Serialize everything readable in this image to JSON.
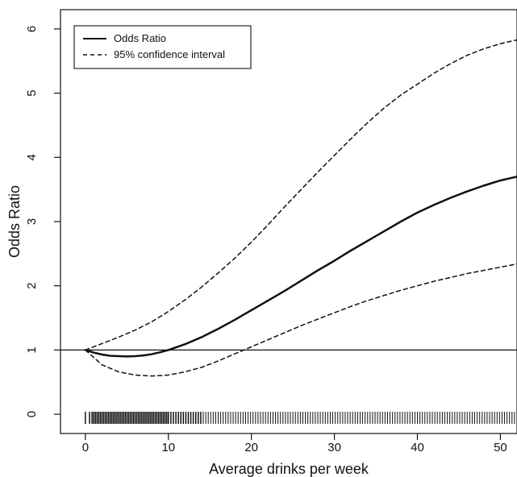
{
  "chart_data": {
    "type": "line",
    "xlabel": "Average drinks per week",
    "ylabel": "Odds Ratio",
    "xlim": [
      -3,
      52
    ],
    "ylim": [
      -0.3,
      6.3
    ],
    "x_ticks": [
      0,
      10,
      20,
      30,
      40,
      50
    ],
    "y_ticks": [
      0,
      1,
      2,
      3,
      4,
      5,
      6
    ],
    "reference_line_y": 1,
    "legend": {
      "position": "top-left",
      "entries": [
        {
          "label": "Odds Ratio",
          "line_style": "solid"
        },
        {
          "label": "95% confidence interval",
          "line_style": "dashed"
        }
      ]
    },
    "series": [
      {
        "name": "Odds Ratio",
        "style": "solid",
        "color": "#111111",
        "points": [
          [
            0,
            1.0
          ],
          [
            1,
            0.96
          ],
          [
            2,
            0.93
          ],
          [
            3,
            0.91
          ],
          [
            4,
            0.905
          ],
          [
            5,
            0.9
          ],
          [
            6,
            0.905
          ],
          [
            7,
            0.915
          ],
          [
            8,
            0.935
          ],
          [
            9,
            0.965
          ],
          [
            10,
            1.0
          ],
          [
            12,
            1.09
          ],
          [
            14,
            1.2
          ],
          [
            16,
            1.33
          ],
          [
            18,
            1.47
          ],
          [
            20,
            1.62
          ],
          [
            22,
            1.77
          ],
          [
            24,
            1.92
          ],
          [
            26,
            2.08
          ],
          [
            28,
            2.24
          ],
          [
            30,
            2.39
          ],
          [
            32,
            2.55
          ],
          [
            34,
            2.7
          ],
          [
            36,
            2.85
          ],
          [
            38,
            3.0
          ],
          [
            40,
            3.14
          ],
          [
            42,
            3.26
          ],
          [
            44,
            3.37
          ],
          [
            46,
            3.47
          ],
          [
            48,
            3.56
          ],
          [
            50,
            3.64
          ],
          [
            52,
            3.7
          ]
        ]
      },
      {
        "name": "95% confidence interval",
        "style": "dashed",
        "color": "#111111",
        "points": [
          [
            0,
            1.0
          ],
          [
            2,
            1.1
          ],
          [
            4,
            1.2
          ],
          [
            6,
            1.31
          ],
          [
            8,
            1.44
          ],
          [
            10,
            1.6
          ],
          [
            12,
            1.78
          ],
          [
            14,
            1.98
          ],
          [
            16,
            2.2
          ],
          [
            18,
            2.43
          ],
          [
            20,
            2.68
          ],
          [
            22,
            2.95
          ],
          [
            24,
            3.23
          ],
          [
            26,
            3.5
          ],
          [
            28,
            3.77
          ],
          [
            30,
            4.03
          ],
          [
            32,
            4.29
          ],
          [
            34,
            4.54
          ],
          [
            36,
            4.77
          ],
          [
            38,
            4.97
          ],
          [
            40,
            5.14
          ],
          [
            42,
            5.31
          ],
          [
            44,
            5.46
          ],
          [
            46,
            5.59
          ],
          [
            48,
            5.69
          ],
          [
            50,
            5.77
          ],
          [
            52,
            5.83
          ]
        ]
      },
      {
        "style": "dashed",
        "color": "#111111",
        "points": [
          [
            0,
            1.0
          ],
          [
            2,
            0.77
          ],
          [
            4,
            0.66
          ],
          [
            6,
            0.61
          ],
          [
            8,
            0.595
          ],
          [
            10,
            0.61
          ],
          [
            12,
            0.66
          ],
          [
            14,
            0.73
          ],
          [
            16,
            0.83
          ],
          [
            18,
            0.94
          ],
          [
            20,
            1.05
          ],
          [
            22,
            1.16
          ],
          [
            24,
            1.27
          ],
          [
            26,
            1.38
          ],
          [
            28,
            1.48
          ],
          [
            30,
            1.58
          ],
          [
            32,
            1.68
          ],
          [
            34,
            1.77
          ],
          [
            36,
            1.85
          ],
          [
            38,
            1.93
          ],
          [
            40,
            2.0
          ],
          [
            42,
            2.07
          ],
          [
            44,
            2.13
          ],
          [
            46,
            2.19
          ],
          [
            48,
            2.24
          ],
          [
            50,
            2.29
          ],
          [
            52,
            2.34
          ]
        ]
      }
    ],
    "rug": {
      "description_values": [
        0,
        0.5,
        0.8,
        1,
        1.2,
        1.4,
        1.6,
        1.8,
        2,
        2.2,
        2.4,
        2.6,
        2.8,
        3,
        3.2,
        3.4,
        3.6,
        3.8,
        4,
        4.2,
        4.4,
        4.6,
        4.8,
        5,
        5.2,
        5.4,
        5.6,
        5.8,
        6,
        6.2,
        6.4,
        6.6,
        6.8,
        7,
        7.2,
        7.4,
        7.6,
        7.8,
        8,
        8.2,
        8.4,
        8.6,
        8.8,
        9,
        9.2,
        9.4,
        9.6,
        9.8,
        10,
        10.3,
        10.6,
        10.9,
        11.2,
        11.5,
        11.8,
        12.1,
        12.4,
        12.7,
        13,
        13.3,
        13.6,
        13.9,
        14.2,
        14.5,
        14.8,
        15.1,
        15.4,
        15.7,
        16,
        16.3,
        16.6,
        16.9,
        17.2,
        17.5,
        17.8,
        18.1,
        18.4,
        18.7,
        19,
        19.3,
        19.6,
        19.9,
        20.2,
        20.5,
        20.8,
        21.1,
        21.4,
        21.7,
        22,
        22.3,
        22.6,
        22.9,
        23.2,
        23.5,
        23.8,
        24.1,
        24.4,
        24.7,
        25,
        25.3,
        25.6,
        25.9,
        26.2,
        26.5,
        26.8,
        27.1,
        27.4,
        27.7,
        28,
        28.3,
        28.6,
        28.9,
        29.2,
        29.5,
        29.8,
        30.1,
        30.4,
        30.7,
        31,
        31.3,
        31.6,
        31.9,
        32.2,
        32.5,
        32.8,
        33.1,
        33.4,
        33.7,
        34,
        34.3,
        34.6,
        34.9,
        35.2,
        35.5,
        35.8,
        36.1,
        36.4,
        36.7,
        37,
        37.3,
        37.6,
        37.9,
        38.2,
        38.5,
        38.8,
        39.1,
        39.4,
        39.7,
        40,
        40.3,
        40.6,
        40.9,
        41.2,
        41.5,
        41.8,
        42.1,
        42.4,
        42.7,
        43,
        43.3,
        43.6,
        43.9,
        44.2,
        44.5,
        44.8,
        45.1,
        45.4,
        45.7,
        46,
        46.3,
        46.6,
        46.9,
        47.2,
        47.5,
        47.8,
        48.1,
        48.4,
        48.7,
        49,
        49.3,
        49.6,
        49.9,
        50.2,
        50.5,
        50.8,
        51.1,
        51.4,
        51.7
      ]
    }
  }
}
